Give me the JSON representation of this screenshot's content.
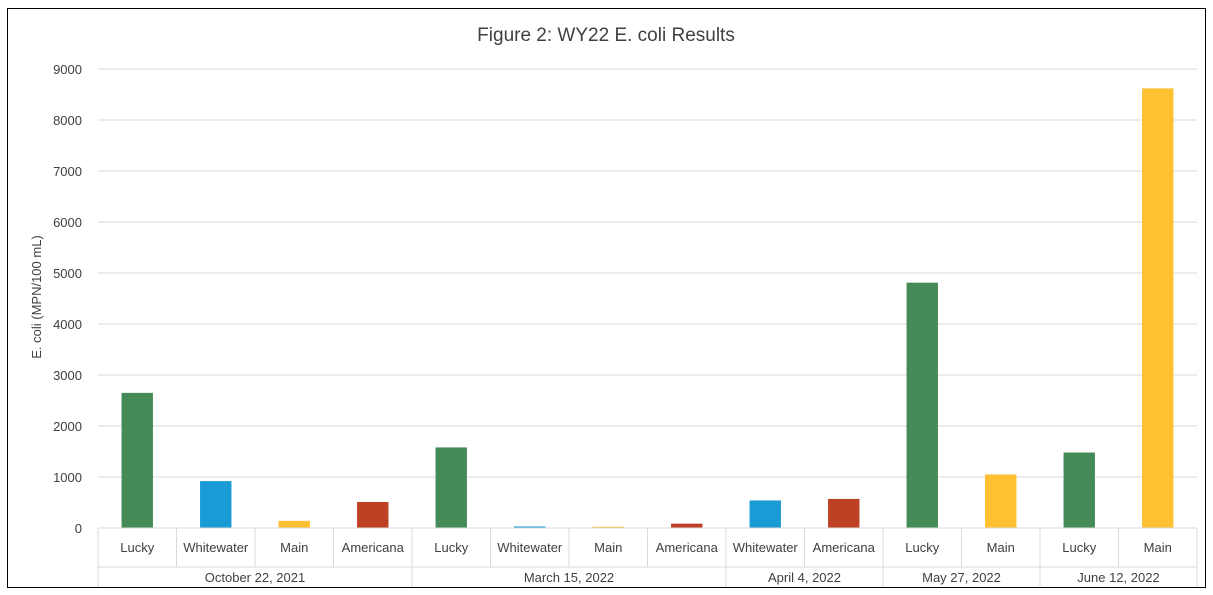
{
  "chart_data": {
    "type": "bar",
    "title": "Figure 2: WY22 E. coli Results",
    "ylabel": "E. coli (MPN/100 mL)",
    "xlabel": "",
    "ylim": [
      0,
      9000
    ],
    "yticks": [
      0,
      1000,
      2000,
      3000,
      4000,
      5000,
      6000,
      7000,
      8000,
      9000
    ],
    "grid": true,
    "colors": {
      "Lucky": "#458B57",
      "Whitewater": "#1A9BD6",
      "Main": "#FFC132",
      "Americana": "#BE4126"
    },
    "groups": [
      {
        "label": "October 22, 2021",
        "bars": [
          {
            "site": "Lucky",
            "value": 2650
          },
          {
            "site": "Whitewater",
            "value": 920
          },
          {
            "site": "Main",
            "value": 140
          },
          {
            "site": "Americana",
            "value": 510
          }
        ]
      },
      {
        "label": "March 15, 2022",
        "bars": [
          {
            "site": "Lucky",
            "value": 1580
          },
          {
            "site": "Whitewater",
            "value": 30
          },
          {
            "site": "Main",
            "value": 25
          },
          {
            "site": "Americana",
            "value": 85
          }
        ]
      },
      {
        "label": "April 4, 2022",
        "bars": [
          {
            "site": "Whitewater",
            "value": 540
          },
          {
            "site": "Americana",
            "value": 570
          }
        ]
      },
      {
        "label": "May 27, 2022",
        "bars": [
          {
            "site": "Lucky",
            "value": 4810
          },
          {
            "site": "Main",
            "value": 1050
          }
        ]
      },
      {
        "label": "June 12, 2022",
        "bars": [
          {
            "site": "Lucky",
            "value": 1480
          },
          {
            "site": "Main",
            "value": 8620
          }
        ]
      }
    ]
  }
}
